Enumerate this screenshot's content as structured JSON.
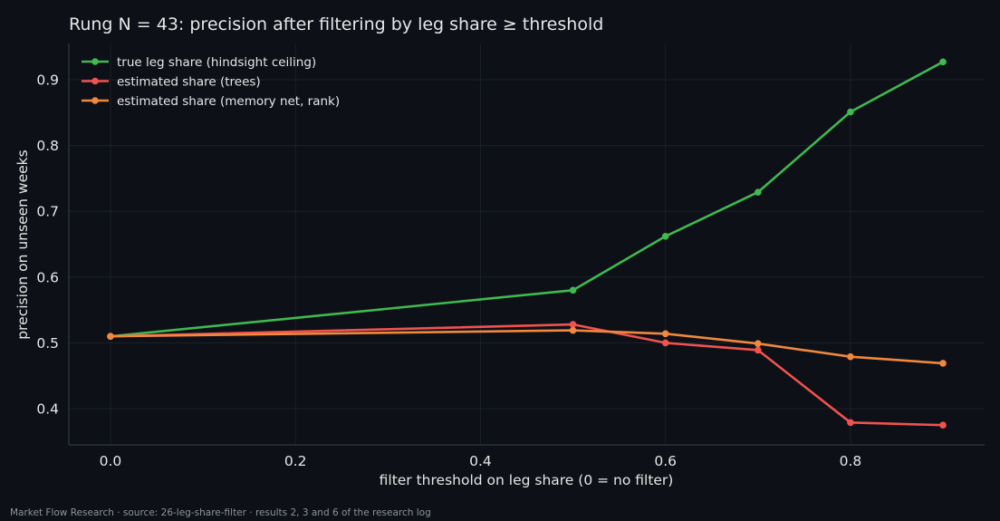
{
  "colors": {
    "background": "#0d1017",
    "text": "#e6e6e6",
    "grid": "#1c2029",
    "axis": "#3a3f48",
    "true_share": "#3fb950",
    "trees": "#f0524f",
    "memory_net": "#f0883e"
  },
  "chart_data": {
    "type": "line",
    "title": "Rung N = 43: precision after filtering by leg share ≥ threshold",
    "xlabel": "filter threshold on leg share (0 = no filter)",
    "ylabel": "precision on unseen weeks",
    "xlim": [
      -0.045,
      0.945
    ],
    "ylim": [
      0.345,
      0.955
    ],
    "x_ticks": [
      0.0,
      0.2,
      0.4,
      0.6,
      0.8
    ],
    "x_tick_labels": [
      "0.0",
      "0.2",
      "0.4",
      "0.6",
      "0.8"
    ],
    "y_ticks": [
      0.4,
      0.5,
      0.6,
      0.7,
      0.8,
      0.9
    ],
    "y_tick_labels": [
      "0.4",
      "0.5",
      "0.6",
      "0.7",
      "0.8",
      "0.9"
    ],
    "grid": true,
    "legend_position": "top-left",
    "x": [
      0.0,
      0.5,
      0.6,
      0.7,
      0.8,
      0.9
    ],
    "series": [
      {
        "name": "true leg share (hindsight ceiling)",
        "color": "#3fb950",
        "values": [
          0.51,
          0.58,
          0.662,
          0.729,
          0.851,
          0.927
        ]
      },
      {
        "name": "estimated share (trees)",
        "color": "#f0524f",
        "values": [
          0.51,
          0.528,
          0.5,
          0.489,
          0.379,
          0.375
        ]
      },
      {
        "name": "estimated share (memory net, rank)",
        "color": "#f0883e",
        "values": [
          0.51,
          0.519,
          0.514,
          0.499,
          0.479,
          0.469
        ]
      }
    ]
  },
  "footer": "Market Flow Research · source: 26-leg-share-filter · results 2, 3 and 6 of the research log"
}
